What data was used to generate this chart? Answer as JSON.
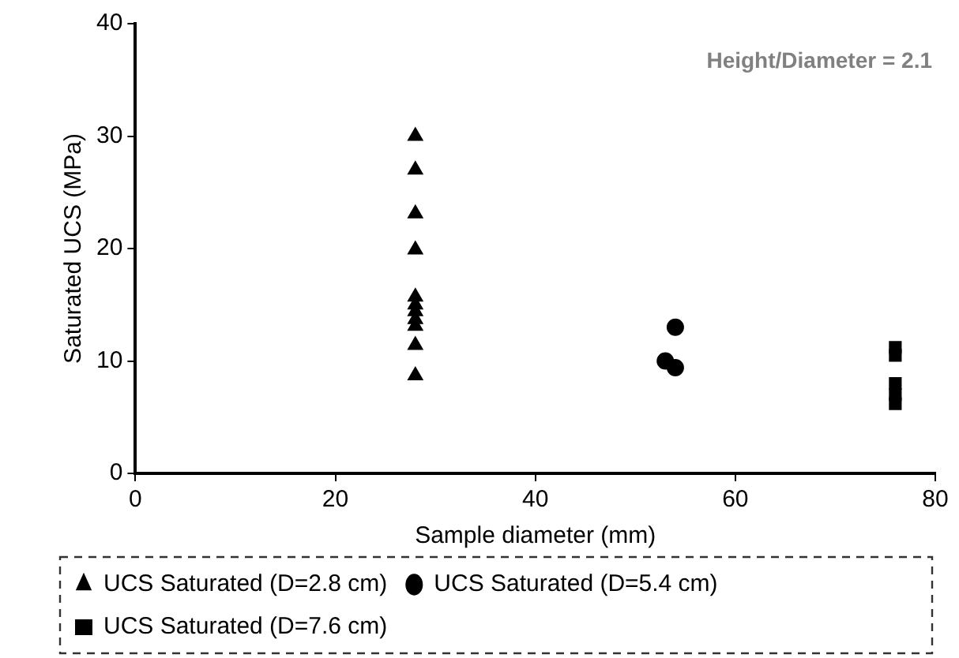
{
  "chart_data": {
    "type": "scatter",
    "xlabel": "Sample diameter (mm)",
    "ylabel": "Saturated UCS (MPa)",
    "annotations": [
      "Height/Diameter = 2.1"
    ],
    "xlim": [
      0,
      80
    ],
    "xticks": [
      0,
      20,
      40,
      60,
      80
    ],
    "ylim": [
      0,
      40
    ],
    "yticks": [
      0,
      10,
      20,
      30,
      40
    ],
    "grid": false,
    "legend": "bottom",
    "series": [
      {
        "name": "UCS Saturated (D=2.8 cm)",
        "color": "#000000",
        "marker": "triangle",
        "x": [
          28,
          28,
          28,
          28,
          28,
          28,
          28,
          28,
          28,
          28,
          28
        ],
        "values": [
          30,
          27,
          23.1,
          19.9,
          15.7,
          15,
          14.4,
          13.7,
          13.1,
          11.4,
          8.7
        ]
      },
      {
        "name": "UCS Saturated (D=5.4 cm)",
        "color": "#000000",
        "marker": "circle",
        "x": [
          54,
          53,
          54
        ],
        "values": [
          13,
          10,
          9.4
        ]
      },
      {
        "name": "UCS Saturated (D=7.6 cm)",
        "color": "#000000",
        "marker": "square",
        "x": [
          76,
          76,
          76,
          76,
          76
        ],
        "values": [
          11.2,
          10.5,
          8,
          7,
          6.2
        ]
      }
    ]
  }
}
